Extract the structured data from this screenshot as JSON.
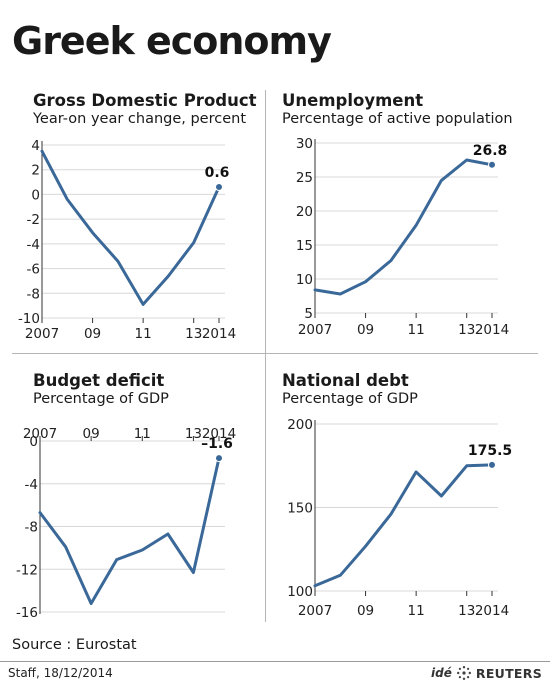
{
  "header": {
    "title": "Greek economy"
  },
  "panels": [
    {
      "title": "Gross Domestic Product",
      "subtitle": "Year-on year change, percent"
    },
    {
      "title": "Unemployment",
      "subtitle": "Percentage of active population"
    },
    {
      "title": "Budget deficit",
      "subtitle": "Percentage of GDP"
    },
    {
      "title": "National debt",
      "subtitle": "Percentage of GDP"
    }
  ],
  "footer": {
    "source": "Source : Eurostat",
    "credit": "Staff, 18/12/2014",
    "brand_ide": "idé",
    "brand_reuters": "REUTERS"
  },
  "colors": {
    "line": "#3a6898",
    "grid": "#d8d8d8",
    "axis": "#333333"
  },
  "chart_data": [
    {
      "type": "line",
      "title": "Gross Domestic Product",
      "subtitle": "Year-on year change, percent",
      "x": [
        2007,
        2008,
        2009,
        2010,
        2011,
        2012,
        2013,
        2014
      ],
      "x_tick_labels": [
        "2007",
        "09",
        "11",
        "13",
        "2014"
      ],
      "x_tick_values": [
        2007,
        2009,
        2011,
        2013,
        2014
      ],
      "series": [
        {
          "values": [
            3.5,
            -0.4,
            -3.1,
            -5.4,
            -8.9,
            -6.6,
            -3.9,
            0.6
          ]
        }
      ],
      "ylim": [
        -10,
        4
      ],
      "y_ticks": [
        4,
        2,
        0,
        -2,
        -4,
        -6,
        -8,
        -10
      ],
      "data_labels": [
        {
          "x": 2014,
          "text": "0.6"
        }
      ],
      "grid": true
    },
    {
      "type": "line",
      "title": "Unemployment",
      "subtitle": "Percentage of active population",
      "x": [
        2007,
        2008,
        2009,
        2010,
        2011,
        2012,
        2013,
        2014
      ],
      "x_tick_labels": [
        "2007",
        "09",
        "11",
        "13",
        "2014"
      ],
      "x_tick_values": [
        2007,
        2009,
        2011,
        2013,
        2014
      ],
      "series": [
        {
          "values": [
            8.4,
            7.8,
            9.6,
            12.7,
            17.9,
            24.5,
            27.5,
            26.8
          ]
        }
      ],
      "ylim": [
        5,
        30
      ],
      "y_ticks": [
        30,
        25,
        20,
        15,
        10,
        5
      ],
      "data_labels": [
        {
          "x": 2014,
          "text": "26.8"
        }
      ],
      "grid": true
    },
    {
      "type": "line",
      "title": "Budget deficit",
      "subtitle": "Percentage of GDP",
      "x": [
        2007,
        2008,
        2009,
        2010,
        2011,
        2012,
        2013,
        2014
      ],
      "x_tick_labels": [
        "2007",
        "09",
        "11",
        "13",
        "2014"
      ],
      "x_tick_values": [
        2007,
        2009,
        2011,
        2013,
        2014
      ],
      "series": [
        {
          "values": [
            -6.7,
            -9.9,
            -15.2,
            -11.1,
            -10.2,
            -8.7,
            -12.3,
            -1.6
          ]
        }
      ],
      "ylim": [
        -16,
        0
      ],
      "y_ticks": [
        0,
        -4,
        -8,
        -12,
        -16
      ],
      "data_labels": [
        {
          "x": 2014,
          "text": "–1.6"
        }
      ],
      "grid": true
    },
    {
      "type": "line",
      "title": "National debt",
      "subtitle": "Percentage of GDP",
      "x": [
        2007,
        2008,
        2009,
        2010,
        2011,
        2012,
        2013,
        2014
      ],
      "x_tick_labels": [
        "2007",
        "09",
        "11",
        "13",
        "2014"
      ],
      "x_tick_values": [
        2007,
        2009,
        2011,
        2013,
        2014
      ],
      "series": [
        {
          "values": [
            103.1,
            109.4,
            126.8,
            146.0,
            171.3,
            156.9,
            175.0,
            175.5
          ]
        }
      ],
      "ylim": [
        100,
        200
      ],
      "y_ticks": [
        200,
        150,
        100
      ],
      "data_labels": [
        {
          "x": 2014,
          "text": "175.5"
        }
      ],
      "grid": true
    }
  ]
}
